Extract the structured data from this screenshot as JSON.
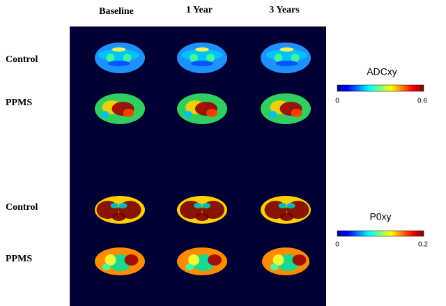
{
  "columns": [
    "Baseline",
    "1 Year",
    "3 Years"
  ],
  "rows": [
    "Control",
    "PPMS",
    "Control",
    "PPMS"
  ],
  "colorbars": [
    {
      "title": "ADCxy",
      "min": 0,
      "max": 0.6
    },
    {
      "title": "P0xy",
      "min": 0,
      "max": 0.2
    }
  ]
}
